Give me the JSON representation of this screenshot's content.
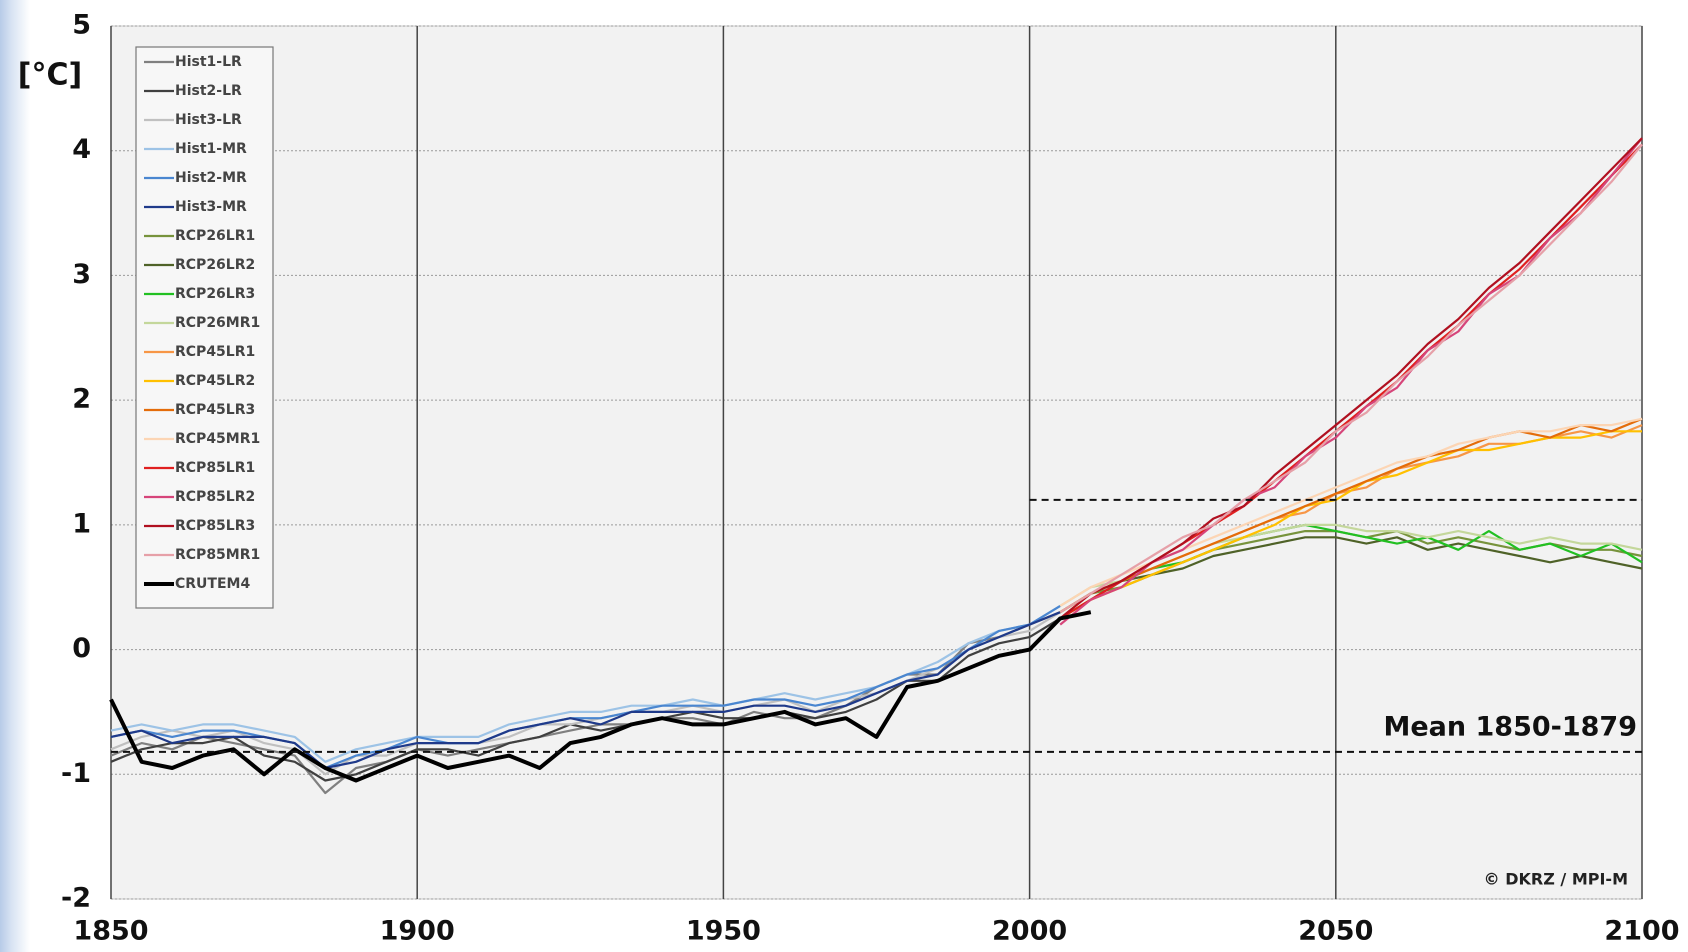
{
  "chart_data": {
    "type": "line",
    "y_label": "[°C]",
    "xlim": [
      1850,
      2100
    ],
    "xticks": [
      1850,
      1900,
      1950,
      2000,
      2050,
      2100
    ],
    "ylim": [
      -2,
      5
    ],
    "yticks": [
      -2,
      -1,
      0,
      1,
      2,
      3,
      4,
      5
    ],
    "grid": true,
    "legend": "upper left",
    "reference_lines": [
      {
        "value": -0.82,
        "x": [
          1850,
          2100
        ]
      },
      {
        "value": 1.2,
        "x": [
          2000,
          2100
        ]
      }
    ],
    "annotations": [
      "Mean 1850-1879",
      "© DKRZ / MPI-M"
    ],
    "series": [
      {
        "name": "Hist1-LR",
        "color": "#808080",
        "x": [
          1850,
          1855,
          1860,
          1865,
          1870,
          1875,
          1880,
          1885,
          1890,
          1895,
          1900,
          1905,
          1910,
          1915,
          1920,
          1925,
          1930,
          1935,
          1940,
          1945,
          1950,
          1955,
          1960,
          1965,
          1970,
          1975,
          1980,
          1985,
          1990,
          1995,
          2000,
          2005
        ],
        "values": [
          -0.85,
          -0.75,
          -0.8,
          -0.7,
          -0.75,
          -0.8,
          -0.85,
          -1.15,
          -0.95,
          -0.9,
          -0.8,
          -0.85,
          -0.8,
          -0.75,
          -0.7,
          -0.65,
          -0.6,
          -0.6,
          -0.55,
          -0.55,
          -0.6,
          -0.5,
          -0.55,
          -0.55,
          -0.45,
          -0.3,
          -0.2,
          -0.2,
          0.05,
          0.1,
          0.2,
          0.3
        ]
      },
      {
        "name": "Hist2-LR",
        "color": "#404040",
        "x": [
          1850,
          1855,
          1860,
          1865,
          1870,
          1875,
          1880,
          1885,
          1890,
          1895,
          1900,
          1905,
          1910,
          1915,
          1920,
          1925,
          1930,
          1935,
          1940,
          1945,
          1950,
          1955,
          1960,
          1965,
          1970,
          1975,
          1980,
          1985,
          1990,
          1995,
          2000,
          2005
        ],
        "values": [
          -0.9,
          -0.8,
          -0.75,
          -0.75,
          -0.7,
          -0.85,
          -0.9,
          -1.05,
          -1.0,
          -0.9,
          -0.8,
          -0.8,
          -0.85,
          -0.75,
          -0.7,
          -0.6,
          -0.65,
          -0.6,
          -0.55,
          -0.5,
          -0.55,
          -0.55,
          -0.5,
          -0.55,
          -0.5,
          -0.4,
          -0.25,
          -0.25,
          -0.05,
          0.05,
          0.1,
          0.25
        ]
      },
      {
        "name": "Hist3-LR",
        "color": "#c0c0c0",
        "x": [
          1850,
          1855,
          1860,
          1865,
          1870,
          1875,
          1880,
          1885,
          1890,
          1895,
          1900,
          1905,
          1910,
          1915,
          1920,
          1925,
          1930,
          1935,
          1940,
          1945,
          1950,
          1955,
          1960,
          1965,
          1970,
          1975,
          1980,
          1985,
          1990,
          1995,
          2000,
          2005
        ],
        "values": [
          -0.8,
          -0.7,
          -0.65,
          -0.7,
          -0.65,
          -0.75,
          -0.8,
          -1.0,
          -0.85,
          -0.85,
          -0.75,
          -0.75,
          -0.75,
          -0.7,
          -0.6,
          -0.6,
          -0.55,
          -0.5,
          -0.5,
          -0.45,
          -0.5,
          -0.45,
          -0.4,
          -0.5,
          -0.4,
          -0.35,
          -0.25,
          -0.15,
          0.0,
          0.1,
          0.15,
          0.3
        ]
      },
      {
        "name": "Hist1-MR",
        "color": "#9dc3e6",
        "x": [
          1850,
          1855,
          1860,
          1865,
          1870,
          1875,
          1880,
          1885,
          1890,
          1895,
          1900,
          1905,
          1910,
          1915,
          1920,
          1925,
          1930,
          1935,
          1940,
          1945,
          1950,
          1955,
          1960,
          1965,
          1970,
          1975,
          1980,
          1985,
          1990,
          1995,
          2000,
          2005
        ],
        "values": [
          -0.65,
          -0.6,
          -0.65,
          -0.6,
          -0.6,
          -0.65,
          -0.7,
          -0.9,
          -0.8,
          -0.75,
          -0.7,
          -0.7,
          -0.7,
          -0.6,
          -0.55,
          -0.5,
          -0.5,
          -0.45,
          -0.45,
          -0.4,
          -0.45,
          -0.4,
          -0.35,
          -0.4,
          -0.35,
          -0.3,
          -0.2,
          -0.1,
          0.05,
          0.15,
          0.2,
          0.35
        ]
      },
      {
        "name": "Hist2-MR",
        "color": "#4a86d0",
        "x": [
          1850,
          1855,
          1860,
          1865,
          1870,
          1875,
          1880,
          1885,
          1890,
          1895,
          1900,
          1905,
          1910,
          1915,
          1920,
          1925,
          1930,
          1935,
          1940,
          1945,
          1950,
          1955,
          1960,
          1965,
          1970,
          1975,
          1980,
          1985,
          1990,
          1995,
          2000,
          2005
        ],
        "values": [
          -0.7,
          -0.65,
          -0.7,
          -0.65,
          -0.65,
          -0.7,
          -0.75,
          -0.95,
          -0.85,
          -0.8,
          -0.7,
          -0.75,
          -0.75,
          -0.65,
          -0.6,
          -0.55,
          -0.55,
          -0.5,
          -0.45,
          -0.45,
          -0.45,
          -0.4,
          -0.4,
          -0.45,
          -0.4,
          -0.3,
          -0.2,
          -0.15,
          0.0,
          0.15,
          0.2,
          0.35
        ]
      },
      {
        "name": "Hist3-MR",
        "color": "#1f3a8a",
        "x": [
          1850,
          1855,
          1860,
          1865,
          1870,
          1875,
          1880,
          1885,
          1890,
          1895,
          1900,
          1905,
          1910,
          1915,
          1920,
          1925,
          1930,
          1935,
          1940,
          1945,
          1950,
          1955,
          1960,
          1965,
          1970,
          1975,
          1980,
          1985,
          1990,
          1995,
          2000,
          2005
        ],
        "values": [
          -0.7,
          -0.65,
          -0.75,
          -0.7,
          -0.7,
          -0.7,
          -0.75,
          -0.95,
          -0.9,
          -0.8,
          -0.75,
          -0.75,
          -0.75,
          -0.65,
          -0.6,
          -0.55,
          -0.6,
          -0.5,
          -0.5,
          -0.5,
          -0.5,
          -0.45,
          -0.45,
          -0.5,
          -0.45,
          -0.35,
          -0.25,
          -0.2,
          0.0,
          0.1,
          0.2,
          0.3
        ]
      },
      {
        "name": "RCP26LR1",
        "color": "#77933c",
        "x": [
          2005,
          2010,
          2015,
          2020,
          2025,
          2030,
          2035,
          2040,
          2045,
          2050,
          2055,
          2060,
          2065,
          2070,
          2075,
          2080,
          2085,
          2090,
          2095,
          2100
        ],
        "values": [
          0.3,
          0.45,
          0.5,
          0.6,
          0.7,
          0.8,
          0.85,
          0.9,
          0.95,
          0.95,
          0.9,
          0.95,
          0.85,
          0.9,
          0.85,
          0.8,
          0.85,
          0.8,
          0.8,
          0.75
        ]
      },
      {
        "name": "RCP26LR2",
        "color": "#4f6228",
        "x": [
          2005,
          2010,
          2015,
          2020,
          2025,
          2030,
          2035,
          2040,
          2045,
          2050,
          2055,
          2060,
          2065,
          2070,
          2075,
          2080,
          2085,
          2090,
          2095,
          2100
        ],
        "values": [
          0.25,
          0.4,
          0.55,
          0.6,
          0.65,
          0.75,
          0.8,
          0.85,
          0.9,
          0.9,
          0.85,
          0.9,
          0.8,
          0.85,
          0.8,
          0.75,
          0.7,
          0.75,
          0.7,
          0.65
        ]
      },
      {
        "name": "RCP26LR3",
        "color": "#22c022",
        "x": [
          2005,
          2010,
          2015,
          2020,
          2025,
          2030,
          2035,
          2040,
          2045,
          2050,
          2055,
          2060,
          2065,
          2070,
          2075,
          2080,
          2085,
          2090,
          2095,
          2100
        ],
        "values": [
          0.3,
          0.45,
          0.55,
          0.65,
          0.7,
          0.8,
          0.9,
          0.95,
          1.0,
          0.95,
          0.9,
          0.85,
          0.9,
          0.8,
          0.95,
          0.8,
          0.85,
          0.75,
          0.85,
          0.7
        ]
      },
      {
        "name": "RCP26MR1",
        "color": "#c4d79b",
        "x": [
          2005,
          2010,
          2015,
          2020,
          2025,
          2030,
          2035,
          2040,
          2045,
          2050,
          2055,
          2060,
          2065,
          2070,
          2075,
          2080,
          2085,
          2090,
          2095,
          2100
        ],
        "values": [
          0.35,
          0.5,
          0.55,
          0.65,
          0.75,
          0.85,
          0.9,
          0.95,
          1.0,
          1.0,
          0.95,
          0.95,
          0.9,
          0.95,
          0.9,
          0.85,
          0.9,
          0.85,
          0.85,
          0.8
        ]
      },
      {
        "name": "RCP45LR1",
        "color": "#f79646",
        "x": [
          2005,
          2010,
          2015,
          2020,
          2025,
          2030,
          2035,
          2040,
          2045,
          2050,
          2055,
          2060,
          2065,
          2070,
          2075,
          2080,
          2085,
          2090,
          2095,
          2100
        ],
        "values": [
          0.3,
          0.45,
          0.55,
          0.65,
          0.75,
          0.85,
          0.95,
          1.05,
          1.1,
          1.25,
          1.3,
          1.45,
          1.5,
          1.55,
          1.65,
          1.65,
          1.7,
          1.75,
          1.7,
          1.8
        ]
      },
      {
        "name": "RCP45LR2",
        "color": "#ffc000",
        "x": [
          2005,
          2010,
          2015,
          2020,
          2025,
          2030,
          2035,
          2040,
          2045,
          2050,
          2055,
          2060,
          2065,
          2070,
          2075,
          2080,
          2085,
          2090,
          2095,
          2100
        ],
        "values": [
          0.25,
          0.4,
          0.5,
          0.6,
          0.7,
          0.8,
          0.9,
          1.0,
          1.15,
          1.2,
          1.35,
          1.4,
          1.5,
          1.6,
          1.6,
          1.65,
          1.7,
          1.7,
          1.75,
          1.75
        ]
      },
      {
        "name": "RCP45LR3",
        "color": "#e46c0a",
        "x": [
          2005,
          2010,
          2015,
          2020,
          2025,
          2030,
          2035,
          2040,
          2045,
          2050,
          2055,
          2060,
          2065,
          2070,
          2075,
          2080,
          2085,
          2090,
          2095,
          2100
        ],
        "values": [
          0.3,
          0.45,
          0.55,
          0.65,
          0.75,
          0.85,
          0.95,
          1.05,
          1.15,
          1.25,
          1.35,
          1.45,
          1.55,
          1.6,
          1.7,
          1.75,
          1.7,
          1.8,
          1.75,
          1.85
        ]
      },
      {
        "name": "RCP45MR1",
        "color": "#fcd5b4",
        "x": [
          2005,
          2010,
          2015,
          2020,
          2025,
          2030,
          2035,
          2040,
          2045,
          2050,
          2055,
          2060,
          2065,
          2070,
          2075,
          2080,
          2085,
          2090,
          2095,
          2100
        ],
        "values": [
          0.35,
          0.5,
          0.6,
          0.7,
          0.8,
          0.9,
          1.0,
          1.1,
          1.2,
          1.3,
          1.4,
          1.5,
          1.55,
          1.65,
          1.7,
          1.75,
          1.75,
          1.8,
          1.8,
          1.85
        ]
      },
      {
        "name": "RCP85LR1",
        "color": "#e02020",
        "x": [
          2005,
          2010,
          2015,
          2020,
          2025,
          2030,
          2035,
          2040,
          2045,
          2050,
          2055,
          2060,
          2065,
          2070,
          2075,
          2080,
          2085,
          2090,
          2095,
          2100
        ],
        "values": [
          0.25,
          0.4,
          0.55,
          0.7,
          0.85,
          1.0,
          1.15,
          1.35,
          1.55,
          1.75,
          1.95,
          2.15,
          2.4,
          2.6,
          2.85,
          3.05,
          3.3,
          3.55,
          3.8,
          4.05
        ]
      },
      {
        "name": "RCP85LR2",
        "color": "#d6457a",
        "x": [
          2005,
          2010,
          2015,
          2020,
          2025,
          2030,
          2035,
          2040,
          2045,
          2050,
          2055,
          2060,
          2065,
          2070,
          2075,
          2080,
          2085,
          2090,
          2095,
          2100
        ],
        "values": [
          0.2,
          0.4,
          0.5,
          0.7,
          0.8,
          1.0,
          1.2,
          1.3,
          1.55,
          1.7,
          1.95,
          2.1,
          2.4,
          2.55,
          2.85,
          3.0,
          3.3,
          3.5,
          3.8,
          4.1
        ]
      },
      {
        "name": "RCP85LR3",
        "color": "#b01020",
        "x": [
          2005,
          2010,
          2015,
          2020,
          2025,
          2030,
          2035,
          2040,
          2045,
          2050,
          2055,
          2060,
          2065,
          2070,
          2075,
          2080,
          2085,
          2090,
          2095,
          2100
        ],
        "values": [
          0.25,
          0.45,
          0.55,
          0.7,
          0.85,
          1.05,
          1.15,
          1.4,
          1.6,
          1.8,
          2.0,
          2.2,
          2.45,
          2.65,
          2.9,
          3.1,
          3.35,
          3.6,
          3.85,
          4.1
        ]
      },
      {
        "name": "RCP85MR1",
        "color": "#e6a0a8",
        "x": [
          2005,
          2010,
          2015,
          2020,
          2025,
          2030,
          2035,
          2040,
          2045,
          2050,
          2055,
          2060,
          2065,
          2070,
          2075,
          2080,
          2085,
          2090,
          2095,
          2100
        ],
        "values": [
          0.3,
          0.45,
          0.6,
          0.75,
          0.9,
          1.0,
          1.2,
          1.35,
          1.5,
          1.75,
          1.9,
          2.15,
          2.35,
          2.6,
          2.8,
          3.0,
          3.25,
          3.5,
          3.75,
          4.05
        ]
      },
      {
        "name": "CRUTEM4",
        "color": "#000000",
        "x": [
          1850,
          1855,
          1860,
          1865,
          1870,
          1875,
          1880,
          1885,
          1890,
          1895,
          1900,
          1905,
          1910,
          1915,
          1920,
          1925,
          1930,
          1935,
          1940,
          1945,
          1950,
          1955,
          1960,
          1965,
          1970,
          1975,
          1980,
          1985,
          1990,
          1995,
          2000,
          2005,
          2010
        ],
        "values": [
          -0.4,
          -0.9,
          -0.95,
          -0.85,
          -0.8,
          -1.0,
          -0.8,
          -0.95,
          -1.05,
          -0.95,
          -0.85,
          -0.95,
          -0.9,
          -0.85,
          -0.95,
          -0.75,
          -0.7,
          -0.6,
          -0.55,
          -0.6,
          -0.6,
          -0.55,
          -0.5,
          -0.6,
          -0.55,
          -0.7,
          -0.3,
          -0.25,
          -0.15,
          -0.05,
          0.0,
          0.25,
          0.3
        ]
      }
    ]
  }
}
